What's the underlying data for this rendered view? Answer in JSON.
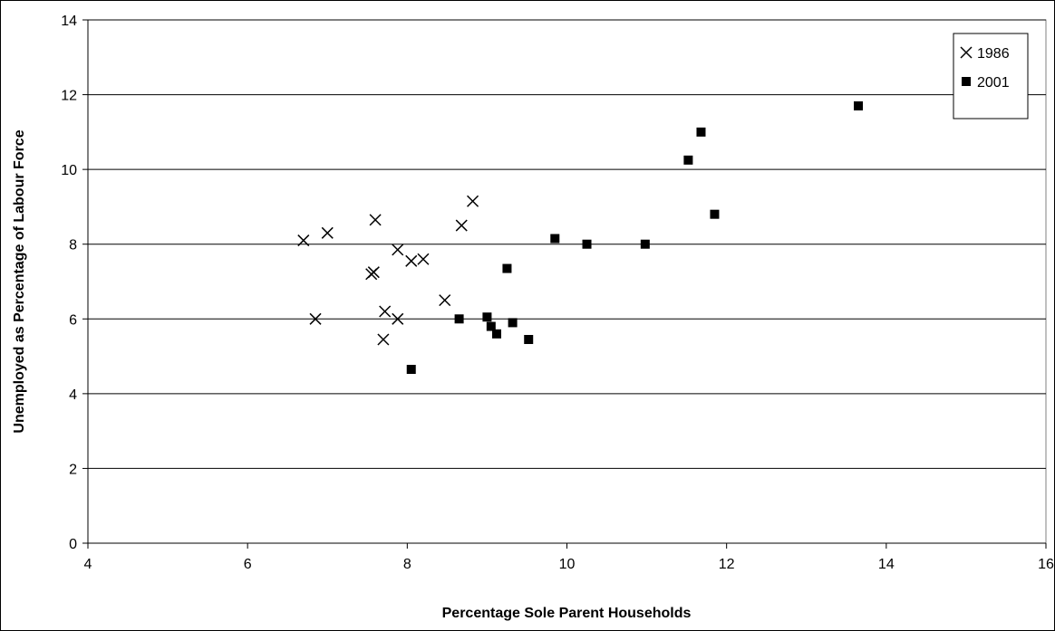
{
  "chart_data": {
    "type": "scatter",
    "xlabel": "Percentage Sole Parent Households",
    "ylabel": "Unemployed as Percentage of Labour Force",
    "xlim": [
      4,
      16
    ],
    "ylim": [
      0,
      14
    ],
    "xticks": [
      4,
      6,
      8,
      10,
      12,
      14,
      16
    ],
    "yticks": [
      0,
      2,
      4,
      6,
      8,
      10,
      12,
      14
    ],
    "grid": "horizontal",
    "legend_position": "top-right",
    "series": [
      {
        "name": "1986",
        "marker": "x",
        "color": "#000000",
        "points": [
          [
            6.7,
            8.1
          ],
          [
            7.0,
            8.3
          ],
          [
            6.85,
            6.0
          ],
          [
            7.55,
            7.2
          ],
          [
            7.58,
            7.25
          ],
          [
            7.6,
            8.65
          ],
          [
            7.7,
            5.45
          ],
          [
            7.72,
            6.2
          ],
          [
            7.88,
            7.85
          ],
          [
            7.88,
            6.0
          ],
          [
            8.05,
            7.55
          ],
          [
            8.2,
            7.6
          ],
          [
            8.47,
            6.5
          ],
          [
            8.68,
            8.5
          ],
          [
            8.82,
            9.15
          ]
        ]
      },
      {
        "name": "2001",
        "marker": "square",
        "color": "#000000",
        "points": [
          [
            8.05,
            4.65
          ],
          [
            8.65,
            6.0
          ],
          [
            9.0,
            6.05
          ],
          [
            9.05,
            5.8
          ],
          [
            9.12,
            5.6
          ],
          [
            9.25,
            7.35
          ],
          [
            9.32,
            5.9
          ],
          [
            9.52,
            5.45
          ],
          [
            9.85,
            8.15
          ],
          [
            10.25,
            8.0
          ],
          [
            10.98,
            8.0
          ],
          [
            11.52,
            10.25
          ],
          [
            11.68,
            11.0
          ],
          [
            11.85,
            8.8
          ],
          [
            13.65,
            11.7
          ]
        ]
      }
    ]
  }
}
